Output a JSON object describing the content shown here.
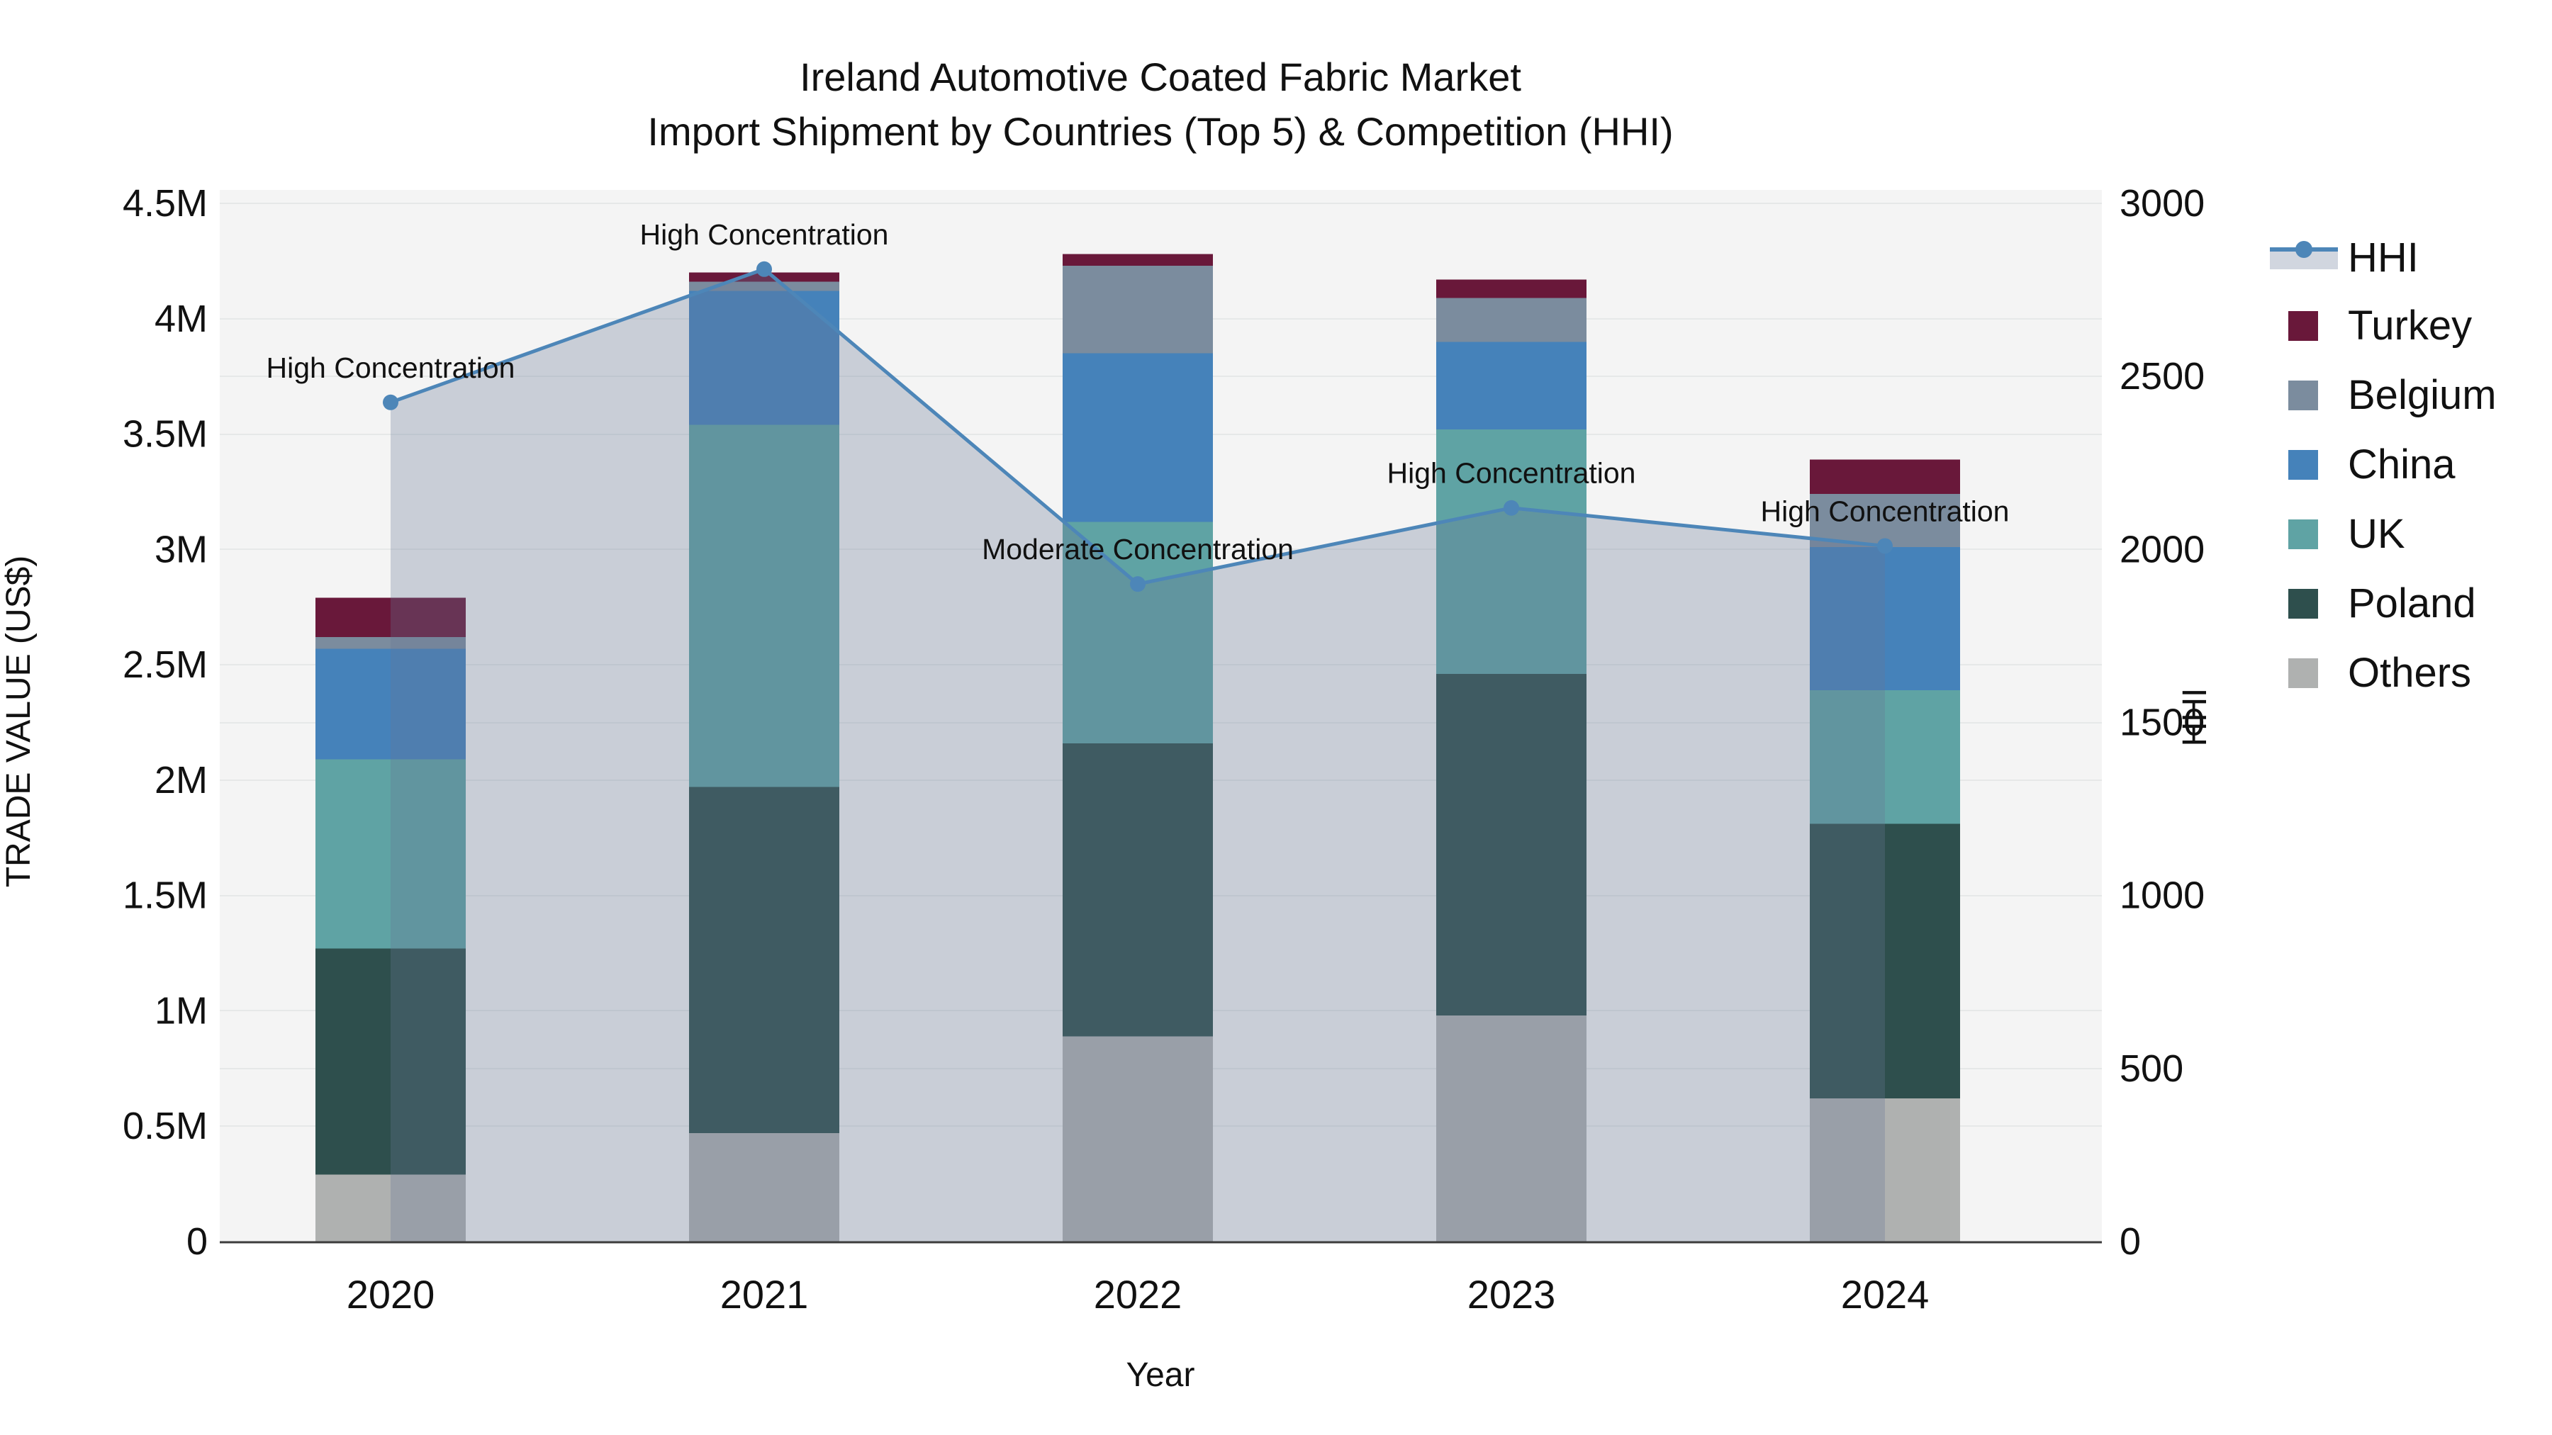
{
  "title": {
    "line1": "Ireland Automotive Coated Fabric Market",
    "line2": "Import Shipment by Countries (Top 5) & Competition (HHI)"
  },
  "axes": {
    "left": {
      "title": "TRADE VALUE (US$)",
      "tick_labels": [
        "0",
        "0.5M",
        "1M",
        "1.5M",
        "2M",
        "2.5M",
        "3M",
        "3.5M",
        "4M",
        "4.5M"
      ],
      "tick_values": [
        0,
        0.5,
        1,
        1.5,
        2,
        2.5,
        3,
        3.5,
        4,
        4.5
      ]
    },
    "right": {
      "title": "HHI",
      "tick_labels": [
        "0",
        "500",
        "1000",
        "1500",
        "2000",
        "2500",
        "3000"
      ],
      "tick_values": [
        0,
        500,
        1000,
        1500,
        2000,
        2500,
        3000
      ]
    },
    "x": {
      "title": "Year",
      "categories": [
        "2020",
        "2021",
        "2022",
        "2023",
        "2024"
      ]
    }
  },
  "legend": [
    {
      "name": "HHI",
      "type": "line",
      "color": "#4d86b8"
    },
    {
      "name": "Turkey",
      "type": "square",
      "color": "#69183a"
    },
    {
      "name": "Belgium",
      "type": "square",
      "color": "#7b8c9e"
    },
    {
      "name": "China",
      "type": "square",
      "color": "#4582ba"
    },
    {
      "name": "UK",
      "type": "square",
      "color": "#5fa3a4"
    },
    {
      "name": "Poland",
      "type": "square",
      "color": "#2e4f4d"
    },
    {
      "name": "Others",
      "type": "square",
      "color": "#afb1b0"
    }
  ],
  "annotations": [
    {
      "year": "2020",
      "text": "High Concentration"
    },
    {
      "year": "2021",
      "text": "High Concentration"
    },
    {
      "year": "2022",
      "text": "Moderate Concentration"
    },
    {
      "year": "2023",
      "text": "High Concentration"
    },
    {
      "year": "2024",
      "text": "High Concentration"
    }
  ],
  "colors": {
    "plot_bg": "#f4f4f4",
    "grid": "#e6e8e8",
    "axis_line": "#3c3c3c",
    "hhi_line": "#4d86b8",
    "hhi_area_rgba": "rgba(103,120,150,0.30)",
    "text": "#111111"
  },
  "chart_data": {
    "type": "bar",
    "subtype": "stacked bars (left axis, US$) + HHI line with area fill (right axis)",
    "categories": [
      "2020",
      "2021",
      "2022",
      "2023",
      "2024"
    ],
    "unit": "millions US$",
    "stack_order_bottom_to_top": [
      "Others",
      "Poland",
      "UK",
      "China",
      "Belgium",
      "Turkey"
    ],
    "series": [
      {
        "name": "Others",
        "color": "#afb1b0",
        "values": [
          0.29,
          0.47,
          0.89,
          0.98,
          0.62
        ]
      },
      {
        "name": "Poland",
        "color": "#2e4f4d",
        "values": [
          0.98,
          1.5,
          1.27,
          1.48,
          1.19
        ]
      },
      {
        "name": "UK",
        "color": "#5fa3a4",
        "values": [
          0.82,
          1.57,
          0.96,
          1.06,
          0.58
        ]
      },
      {
        "name": "China",
        "color": "#4582ba",
        "values": [
          0.48,
          0.58,
          0.73,
          0.38,
          0.62
        ]
      },
      {
        "name": "Belgium",
        "color": "#7b8c9e",
        "values": [
          0.05,
          0.04,
          0.38,
          0.19,
          0.23
        ]
      },
      {
        "name": "Turkey",
        "color": "#69183a",
        "values": [
          0.17,
          0.04,
          0.05,
          0.08,
          0.15
        ]
      }
    ],
    "totals": [
      2.79,
      4.2,
      4.28,
      4.17,
      3.39
    ],
    "hhi": {
      "name": "HHI",
      "axis": "right",
      "color": "#4d86b8",
      "values": [
        2425,
        2810,
        1900,
        2120,
        2010
      ]
    },
    "title": "Ireland Automotive Coated Fabric Market — Import Shipment by Countries (Top 5) & Competition (HHI)",
    "xlabel": "Year",
    "ylabel_left": "TRADE VALUE (US$)",
    "ylabel_right": "HHI",
    "ylim_left": [
      0,
      4.5
    ],
    "ylim_right": [
      0,
      3000
    ],
    "grid": true,
    "legend_position": "right"
  }
}
